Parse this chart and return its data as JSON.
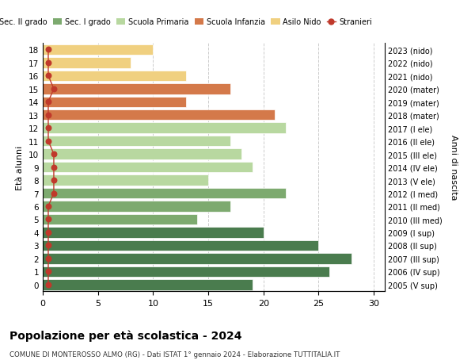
{
  "ages": [
    18,
    17,
    16,
    15,
    14,
    13,
    12,
    11,
    10,
    9,
    8,
    7,
    6,
    5,
    4,
    3,
    2,
    1,
    0
  ],
  "right_labels": [
    "2005 (V sup)",
    "2006 (IV sup)",
    "2007 (III sup)",
    "2008 (II sup)",
    "2009 (I sup)",
    "2010 (III med)",
    "2011 (II med)",
    "2012 (I med)",
    "2013 (V ele)",
    "2014 (IV ele)",
    "2015 (III ele)",
    "2016 (II ele)",
    "2017 (I ele)",
    "2018 (mater)",
    "2019 (mater)",
    "2020 (mater)",
    "2021 (nido)",
    "2022 (nido)",
    "2023 (nido)"
  ],
  "bar_values": [
    19,
    26,
    28,
    25,
    20,
    14,
    17,
    22,
    15,
    19,
    18,
    17,
    22,
    21,
    13,
    17,
    13,
    8,
    10
  ],
  "bar_colors": [
    "#4a7c4e",
    "#4a7c4e",
    "#4a7c4e",
    "#4a7c4e",
    "#4a7c4e",
    "#7daa6f",
    "#7daa6f",
    "#7daa6f",
    "#b8d8a0",
    "#b8d8a0",
    "#b8d8a0",
    "#b8d8a0",
    "#b8d8a0",
    "#d4794a",
    "#d4794a",
    "#d4794a",
    "#f0d080",
    "#f0d080",
    "#f0d080"
  ],
  "stranieri_x": [
    0.5,
    0.5,
    0.5,
    0.5,
    0.5,
    0.5,
    0.5,
    1.0,
    1.0,
    1.0,
    1.0,
    0.5,
    0.5,
    0.5,
    0.5,
    1.0,
    0.5,
    0.5,
    0.5
  ],
  "title": "Popolazione per età scolastica - 2024",
  "subtitle": "COMUNE DI MONTEROSSO ALMO (RG) - Dati ISTAT 1° gennaio 2024 - Elaborazione TUTTITALIA.IT",
  "ylabel_left": "Età alunni",
  "ylabel_right": "Anni di nascita",
  "legend_labels": [
    "Sec. II grado",
    "Sec. I grado",
    "Scuola Primaria",
    "Scuola Infanzia",
    "Asilo Nido",
    "Stranieri"
  ],
  "legend_colors": [
    "#4a7c4e",
    "#7daa6f",
    "#b8d8a0",
    "#d4794a",
    "#f0d080",
    "#c0392b"
  ],
  "background_color": "#ffffff",
  "grid_color": "#cccccc",
  "xlim": [
    0,
    31
  ],
  "xticks": [
    0,
    5,
    10,
    15,
    20,
    25,
    30
  ],
  "bar_height": 0.82,
  "stranieri_color": "#c0392b"
}
